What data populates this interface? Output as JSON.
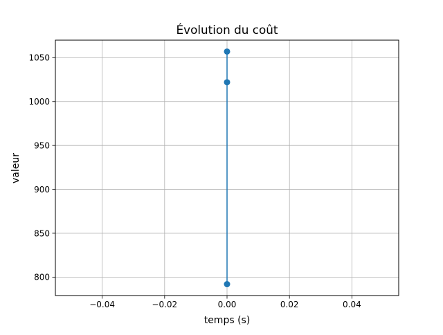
{
  "chart_data": {
    "type": "line",
    "title": "Évolution du coût",
    "xlabel": "temps (s)",
    "ylabel": "valeur",
    "xlim": [
      -0.055,
      0.055
    ],
    "ylim": [
      779,
      1070
    ],
    "x_ticks": [
      -0.04,
      -0.02,
      0.0,
      0.02,
      0.04
    ],
    "x_tick_labels": [
      "−0.04",
      "−0.02",
      "0.00",
      "0.02",
      "0.04"
    ],
    "y_ticks": [
      800,
      850,
      900,
      950,
      1000,
      1050
    ],
    "y_tick_labels": [
      "800",
      "850",
      "900",
      "950",
      "1000",
      "1050"
    ],
    "grid": true,
    "series": [
      {
        "color": "#1f77b4",
        "marker": "circle",
        "x": [
          0.0,
          0.0,
          0.0
        ],
        "y": [
          1057,
          1022,
          792
        ]
      }
    ]
  }
}
